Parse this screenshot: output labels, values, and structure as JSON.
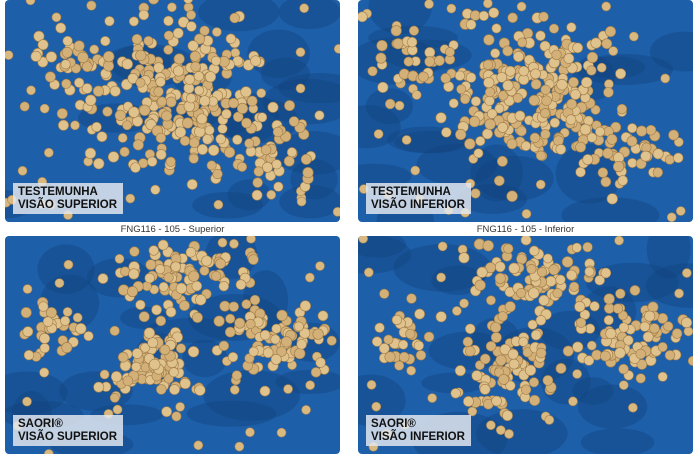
{
  "panels": [
    {
      "label": [
        "TESTEMUNHA",
        "VISÃO SUPERIOR"
      ]
    },
    {
      "label": [
        "TESTEMUNHA",
        "VISÃO INFERIOR"
      ]
    },
    {
      "caption": "FNG116 - 105 - Superior",
      "label": [
        "SAORI®",
        "VISÃO SUPERIOR"
      ]
    },
    {
      "caption": "FNG116 - 105 - Inferior",
      "label": [
        "SAORI®",
        "VISÃO INFERIOR"
      ]
    }
  ]
}
